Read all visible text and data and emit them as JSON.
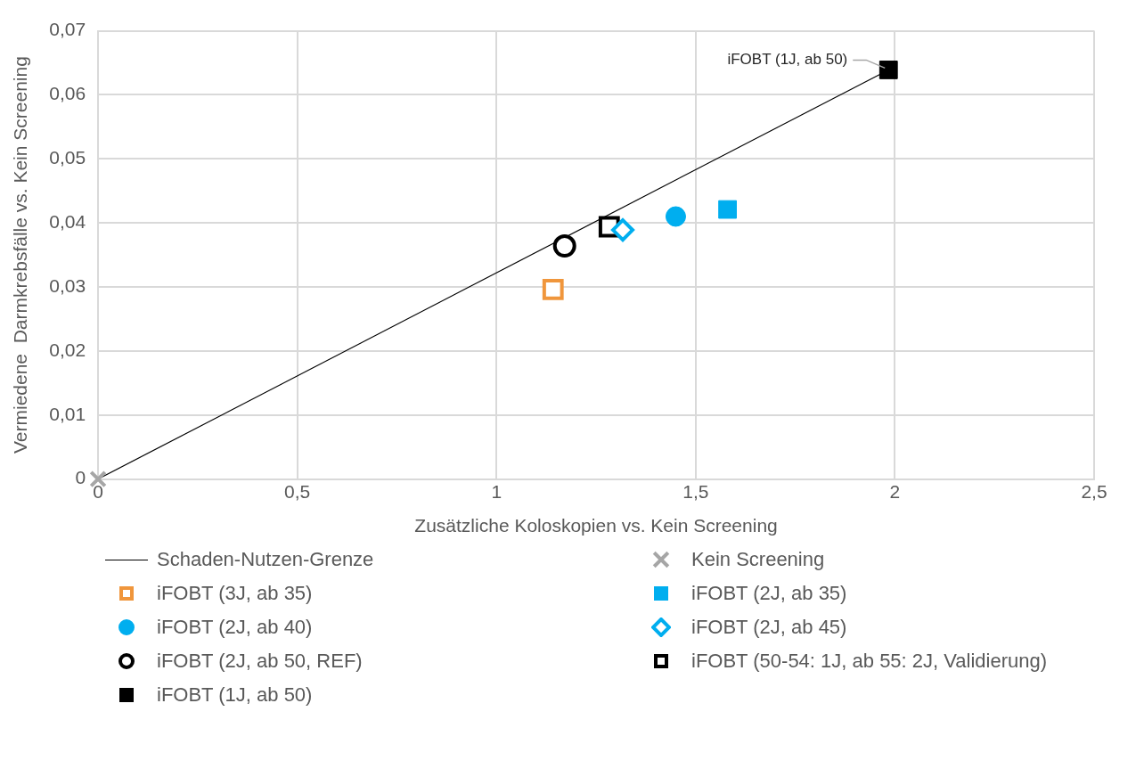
{
  "chart_data": {
    "type": "scatter",
    "xlabel": "Zusätzliche Koloskopien vs. Kein Screening",
    "ylabel": "Vermiedene  Darmkrebsfälle vs. Kein Screening",
    "xlim": [
      0,
      2.5
    ],
    "xticks": [
      0,
      {
        "value": 0.5,
        "label": "0,5"
      },
      1,
      {
        "value": 1.5,
        "label": "1,5"
      },
      2,
      {
        "value": 2.5,
        "label": "2,5"
      }
    ],
    "ylim": [
      0,
      0.07
    ],
    "yticks": [
      0,
      {
        "value": 0.01,
        "label": "0,01"
      },
      {
        "value": 0.02,
        "label": "0,02"
      },
      {
        "value": 0.03,
        "label": "0,03"
      },
      {
        "value": 0.04,
        "label": "0,04"
      },
      {
        "value": 0.05,
        "label": "0,05"
      },
      {
        "value": 0.06,
        "label": "0,06"
      },
      {
        "value": 0.07,
        "label": "0,07"
      }
    ],
    "grid": true,
    "legend": "bottom",
    "annotations": [
      {
        "text": "iFOBT (1J, ab 50)",
        "x": 1.984,
        "y": 0.0639
      }
    ],
    "series": [
      {
        "name": "Schaden-Nutzen-Grenze",
        "type": "line",
        "color": "#000000",
        "marker": "none",
        "x": [
          0,
          1.984
        ],
        "values": [
          0,
          0.0639
        ]
      },
      {
        "name": "Kein Screening",
        "color": "#a6a6a6",
        "marker": "cross",
        "x": [
          0
        ],
        "values": [
          0
        ]
      },
      {
        "name": "iFOBT (3J, ab 35)",
        "color": "#f0963c",
        "marker": "square-open",
        "x": [
          1.142
        ],
        "values": [
          0.0296
        ]
      },
      {
        "name": "iFOBT (2J, ab 35)",
        "color": "#00aeef",
        "marker": "square",
        "x": [
          1.58
        ],
        "values": [
          0.0421
        ]
      },
      {
        "name": "iFOBT (2J, ab 40)",
        "color": "#00aeef",
        "marker": "circle",
        "x": [
          1.45
        ],
        "values": [
          0.041
        ]
      },
      {
        "name": "iFOBT (2J, ab 45)",
        "color": "#00aeef",
        "marker": "diamond-open",
        "x": [
          1.317
        ],
        "values": [
          0.0389
        ]
      },
      {
        "name": "iFOBT (2J, ab 50, REF)",
        "color": "#000000",
        "marker": "circle-open",
        "x": [
          1.171
        ],
        "values": [
          0.0364
        ]
      },
      {
        "name": "iFOBT (50-54: 1J, ab 55: 2J, Validierung)",
        "color": "#000000",
        "marker": "square-open",
        "x": [
          1.283
        ],
        "values": [
          0.0394
        ]
      },
      {
        "name": "iFOBT (1J, ab 50)",
        "color": "#000000",
        "marker": "square",
        "x": [
          1.984
        ],
        "values": [
          0.0639
        ]
      }
    ]
  }
}
